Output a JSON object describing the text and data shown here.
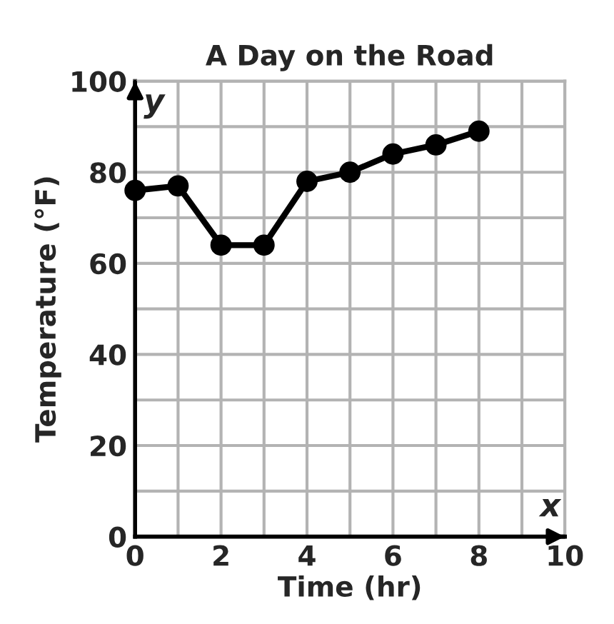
{
  "chart_data": {
    "type": "line",
    "title": "A Day on the Road",
    "xlabel": "Time (hr)",
    "ylabel": "Temperature (°F)",
    "annotations": [
      "y",
      "x"
    ],
    "x": [
      0,
      1,
      2,
      3,
      4,
      5,
      6,
      7,
      8
    ],
    "series": [
      {
        "color": "#000000",
        "values": [
          76,
          77,
          64,
          64,
          78,
          80,
          84,
          86,
          89
        ]
      }
    ],
    "xlim": [
      0,
      10
    ],
    "ylim": [
      0,
      100
    ],
    "xticks": [
      0,
      {
        "value": 1,
        "label": null
      },
      2,
      {
        "value": 3,
        "label": null
      },
      4,
      {
        "value": 5,
        "label": null
      },
      6,
      {
        "value": 7,
        "label": null
      },
      8,
      {
        "value": 9,
        "label": null
      },
      10
    ],
    "yticks": [
      0,
      {
        "value": 10,
        "label": null
      },
      20,
      {
        "value": 30,
        "label": null
      },
      40,
      {
        "value": 50,
        "label": null
      },
      60,
      {
        "value": 70,
        "label": null
      },
      80,
      {
        "value": 90,
        "label": null
      },
      100
    ],
    "grid": true,
    "legend": false,
    "marker": "circle",
    "line_style": "solid"
  }
}
